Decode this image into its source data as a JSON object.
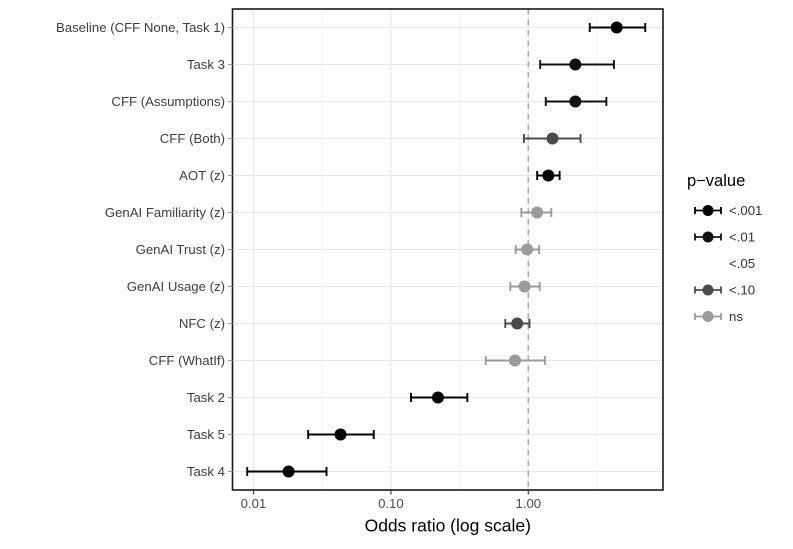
{
  "chart_data": {
    "type": "scatter",
    "subtype": "forest-plot-dot-whisker",
    "title": "",
    "xlabel": "Odds ratio (log scale)",
    "ylabel": "",
    "x_scale": "log10",
    "xlim": [
      0.007,
      9.6
    ],
    "grid": true,
    "x_ticks": [
      {
        "value": 0.01,
        "label": "0.01"
      },
      {
        "value": 0.1,
        "label": "0.10"
      },
      {
        "value": 1.0,
        "label": "1.00"
      }
    ],
    "x_minor_gridlines": [
      0.0316,
      0.316,
      3.16
    ],
    "reference_line": {
      "x": 1.0,
      "style": "dashed",
      "color": "#ababab"
    },
    "categories": [
      "Baseline (CFF None, Task 1)",
      "Task 3",
      "CFF (Assumptions)",
      "CFF (Both)",
      "AOT (z)",
      "GenAI Familiarity (z)",
      "GenAI Trust (z)",
      "GenAI Usage (z)",
      "NFC (z)",
      "CFF (WhatIf)",
      "Task 2",
      "Task 5",
      "Task 4"
    ],
    "points": [
      {
        "label": "Baseline (CFF None, Task 1)",
        "odds_ratio": 4.4,
        "ci_low": 2.8,
        "ci_high": 7.1,
        "p": "<.001"
      },
      {
        "label": "Task 3",
        "odds_ratio": 2.2,
        "ci_low": 1.22,
        "ci_high": 4.2,
        "p": "<.01"
      },
      {
        "label": "CFF (Assumptions)",
        "odds_ratio": 2.2,
        "ci_low": 1.34,
        "ci_high": 3.7,
        "p": "<.01"
      },
      {
        "label": "CFF (Both)",
        "odds_ratio": 1.5,
        "ci_low": 0.93,
        "ci_high": 2.4,
        "p": "<.10"
      },
      {
        "label": "AOT (z)",
        "odds_ratio": 1.4,
        "ci_low": 1.16,
        "ci_high": 1.69,
        "p": "<.001"
      },
      {
        "label": "GenAI Familiarity (z)",
        "odds_ratio": 1.16,
        "ci_low": 0.89,
        "ci_high": 1.47,
        "p": "ns"
      },
      {
        "label": "GenAI Trust (z)",
        "odds_ratio": 0.98,
        "ci_low": 0.81,
        "ci_high": 1.2,
        "p": "ns"
      },
      {
        "label": "GenAI Usage (z)",
        "odds_ratio": 0.94,
        "ci_low": 0.74,
        "ci_high": 1.21,
        "p": "ns"
      },
      {
        "label": "NFC (z)",
        "odds_ratio": 0.83,
        "ci_low": 0.68,
        "ci_high": 1.02,
        "p": "<.10"
      },
      {
        "label": "CFF (WhatIf)",
        "odds_ratio": 0.8,
        "ci_low": 0.49,
        "ci_high": 1.32,
        "p": "ns"
      },
      {
        "label": "Task 2",
        "odds_ratio": 0.22,
        "ci_low": 0.14,
        "ci_high": 0.36,
        "p": "<.001"
      },
      {
        "label": "Task 5",
        "odds_ratio": 0.043,
        "ci_low": 0.025,
        "ci_high": 0.075,
        "p": "<.001"
      },
      {
        "label": "Task 4",
        "odds_ratio": 0.018,
        "ci_low": 0.009,
        "ci_high": 0.034,
        "p": "<.001"
      }
    ],
    "legend": {
      "title": "p−value",
      "position": "right",
      "entries": [
        {
          "label": "<.001",
          "p": "<.001",
          "show_key": true
        },
        {
          "label": "<.01",
          "p": "<.01",
          "show_key": true
        },
        {
          "label": "<.05",
          "p": "<.05",
          "show_key": false
        },
        {
          "label": "<.10",
          "p": "<.10",
          "show_key": true
        },
        {
          "label": "ns",
          "p": "ns",
          "show_key": true
        }
      ]
    },
    "palette": {
      "<.001": "#000000",
      "<.01": "#121212",
      "<.05": "#3a3a3a",
      "<.10": "#4b4b4b",
      "ns": "#9b9b9b"
    },
    "style_colors": {
      "grid_major": "#e7e7e7",
      "grid_minor": "#f1f1f1",
      "panel_border": "#1a1a1a",
      "tick": "#333333",
      "tick_label": "#4d4d4d",
      "axis_title": "#000000",
      "category_label": "#3d3d3d",
      "legend_label": "#333333"
    }
  }
}
